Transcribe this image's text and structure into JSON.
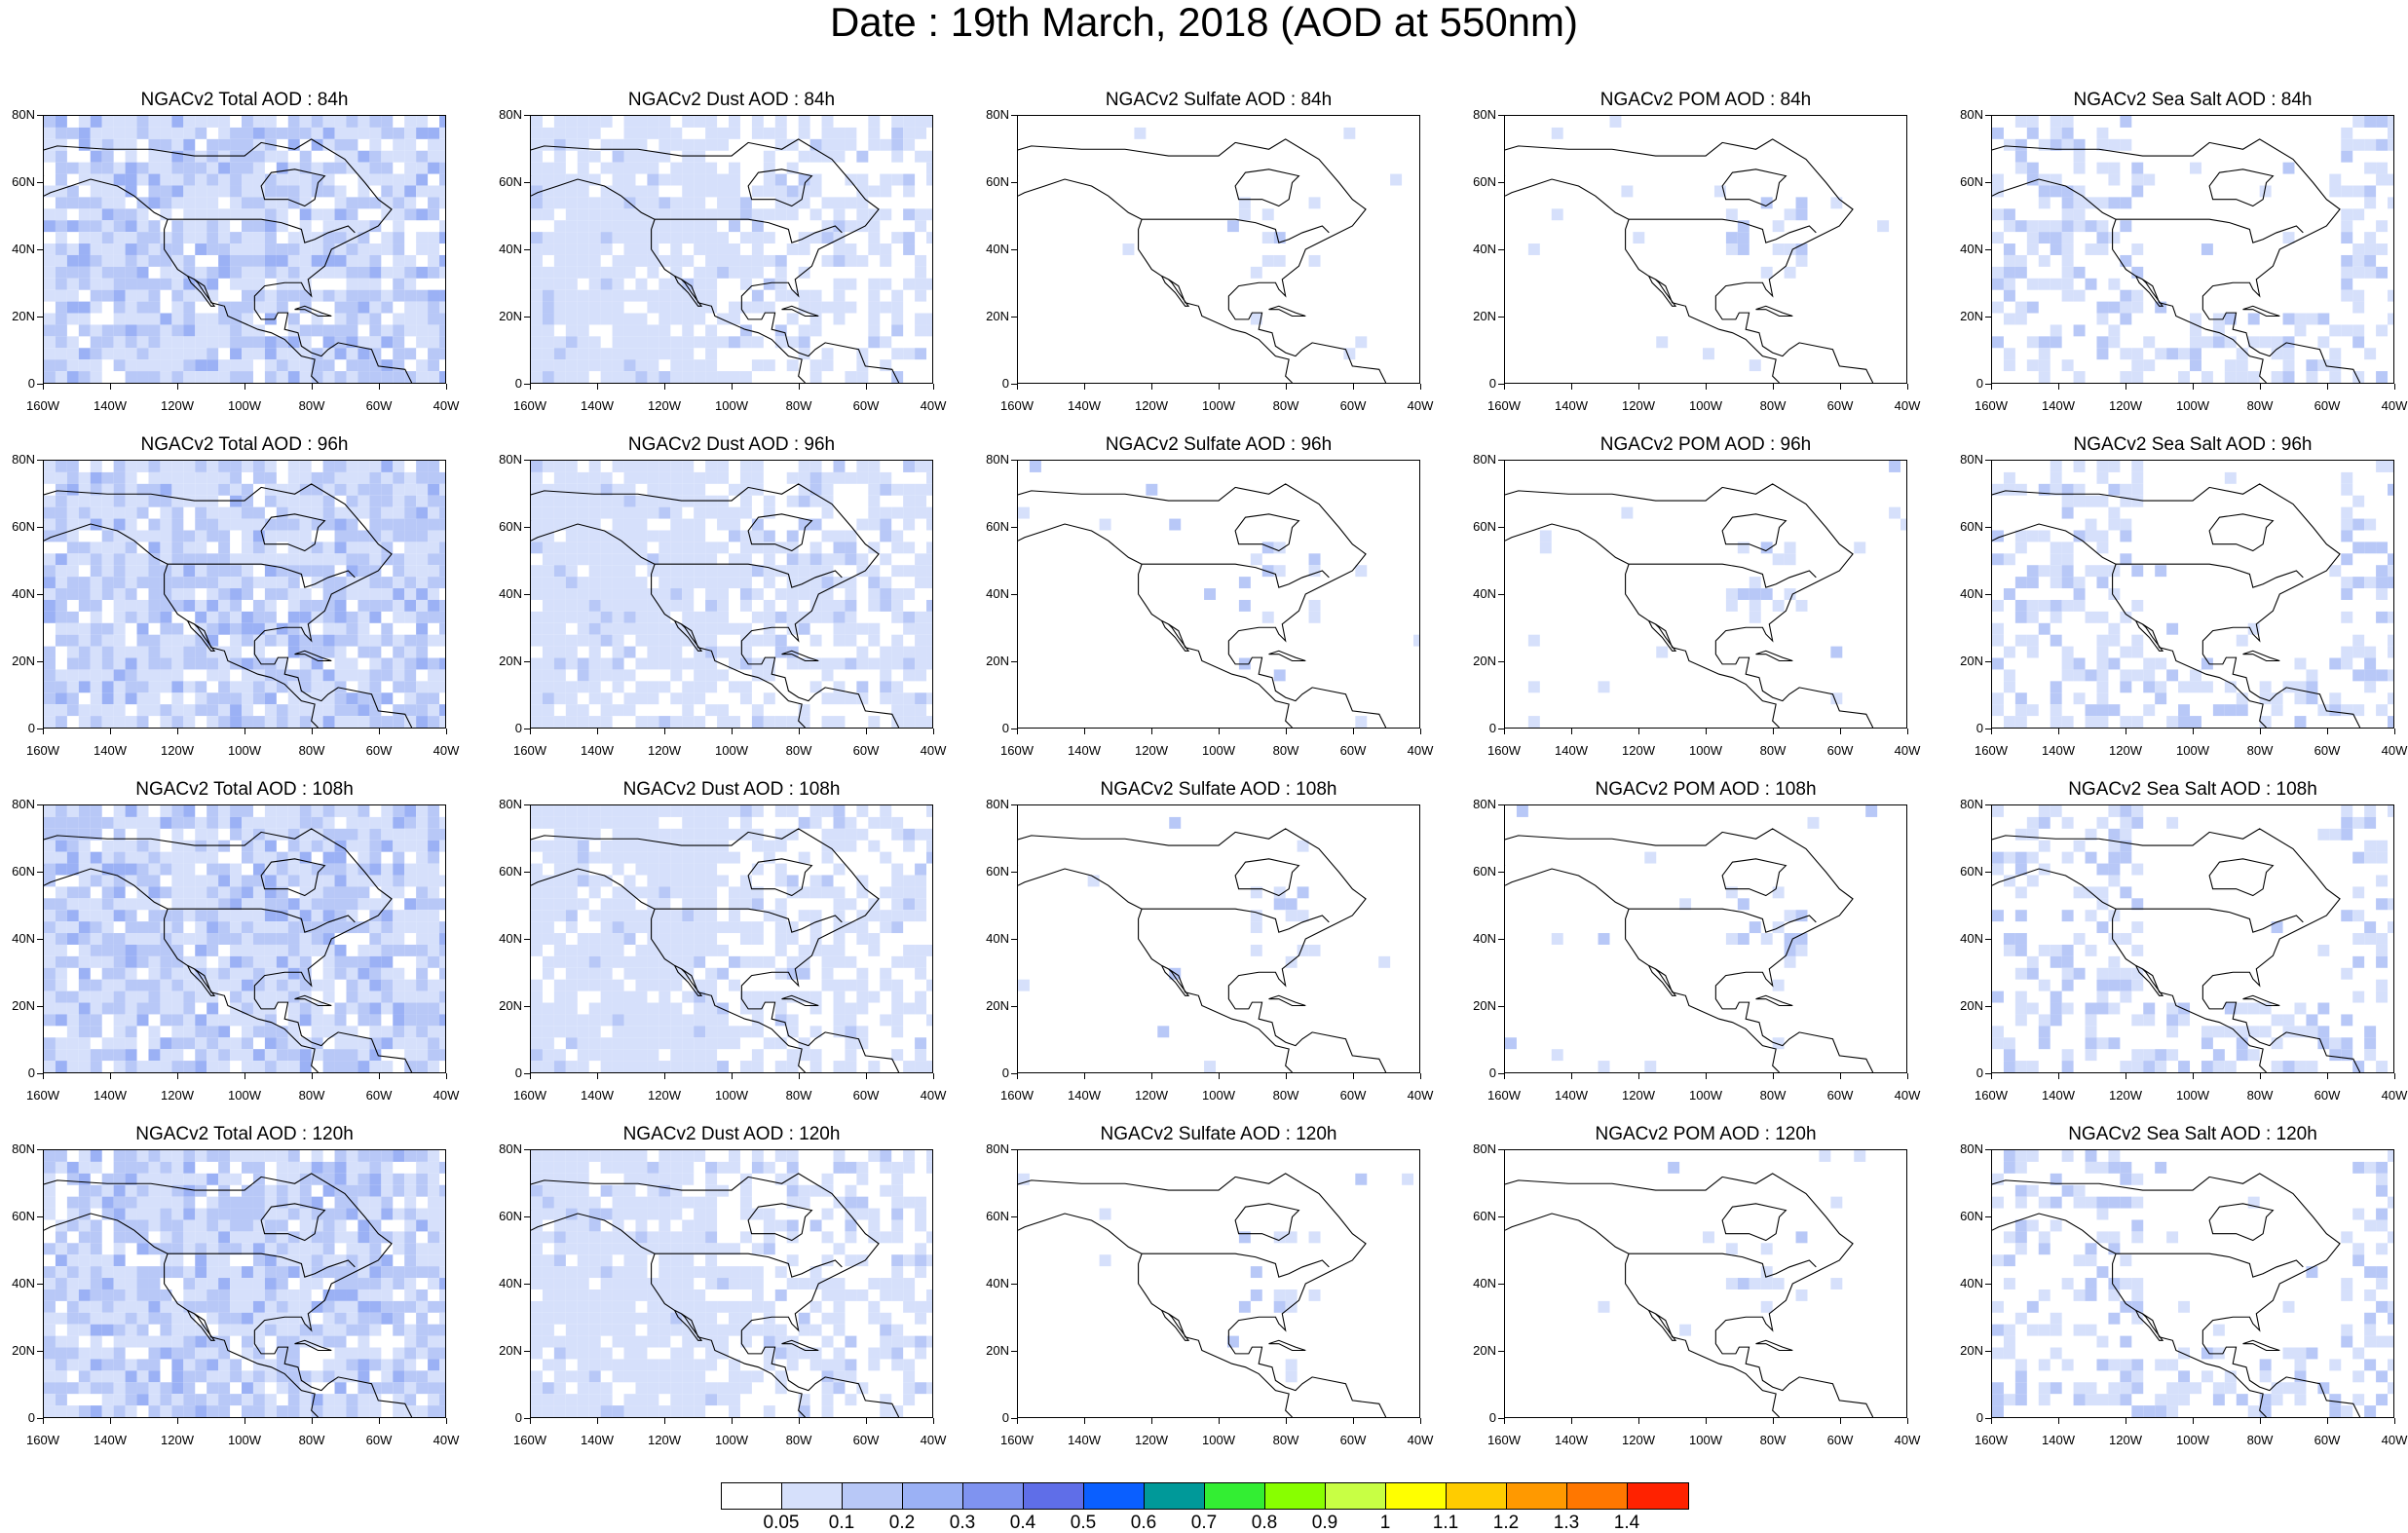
{
  "title": "Date : 19th March, 2018 (AOD at 550nm)",
  "columns": [
    {
      "species": "Total",
      "accent": "#8fa8f2"
    },
    {
      "species": "Dust",
      "accent": "#a9bdf5"
    },
    {
      "species": "Sulfate",
      "accent": "#c5d3fa"
    },
    {
      "species": "POM",
      "accent": "#c5d3fa"
    },
    {
      "species": "Sea Salt",
      "accent": "#a9bdf5"
    }
  ],
  "panels": [
    [
      "NGACv2 Total AOD : 84h",
      "NGACv2 Dust AOD : 84h",
      "NGACv2 Sulfate AOD : 84h",
      "NGACv2 POM AOD : 84h",
      "NGACv2 Sea Salt AOD : 84h"
    ],
    [
      "NGACv2 Total AOD : 96h",
      "NGACv2 Dust AOD : 96h",
      "NGACv2 Sulfate AOD : 96h",
      "NGACv2 POM AOD : 96h",
      "NGACv2 Sea Salt AOD : 96h"
    ],
    [
      "NGACv2 Total AOD : 108h",
      "NGACv2 Dust AOD : 108h",
      "NGACv2 Sulfate AOD : 108h",
      "NGACv2 POM AOD : 108h",
      "NGACv2 Sea Salt AOD : 108h"
    ],
    [
      "NGACv2 Total AOD : 120h",
      "NGACv2 Dust AOD : 120h",
      "NGACv2 Sulfate AOD : 120h",
      "NGACv2 POM AOD : 120h",
      "NGACv2 Sea Salt  AOD : 120h"
    ]
  ],
  "lat_labels": [
    "80N",
    "60N",
    "40N",
    "20N",
    "0"
  ],
  "lon_labels_default": [
    "160W",
    "140W",
    "120W",
    "100W",
    "80W",
    "60W",
    "40W"
  ],
  "lon_labels_alt": [
    "160W",
    "140W",
    "120W",
    "100W",
    "80W",
    "60W",
    "40W"
  ],
  "colorbar": {
    "colors": [
      "#ffffff",
      "#d6e0fb",
      "#b8c8f7",
      "#9bb1f5",
      "#7f93f0",
      "#5f6ee8",
      "#0a5fff",
      "#009999",
      "#33ee33",
      "#88ff00",
      "#c8ff44",
      "#ffff00",
      "#ffcc00",
      "#ff9900",
      "#ff7700",
      "#ff2200"
    ],
    "labels": [
      "0.05",
      "0.1",
      "0.2",
      "0.3",
      "0.4",
      "0.5",
      "0.6",
      "0.7",
      "0.8",
      "0.9",
      "1",
      "1.1",
      "1.2",
      "1.3",
      "1.4"
    ]
  }
}
